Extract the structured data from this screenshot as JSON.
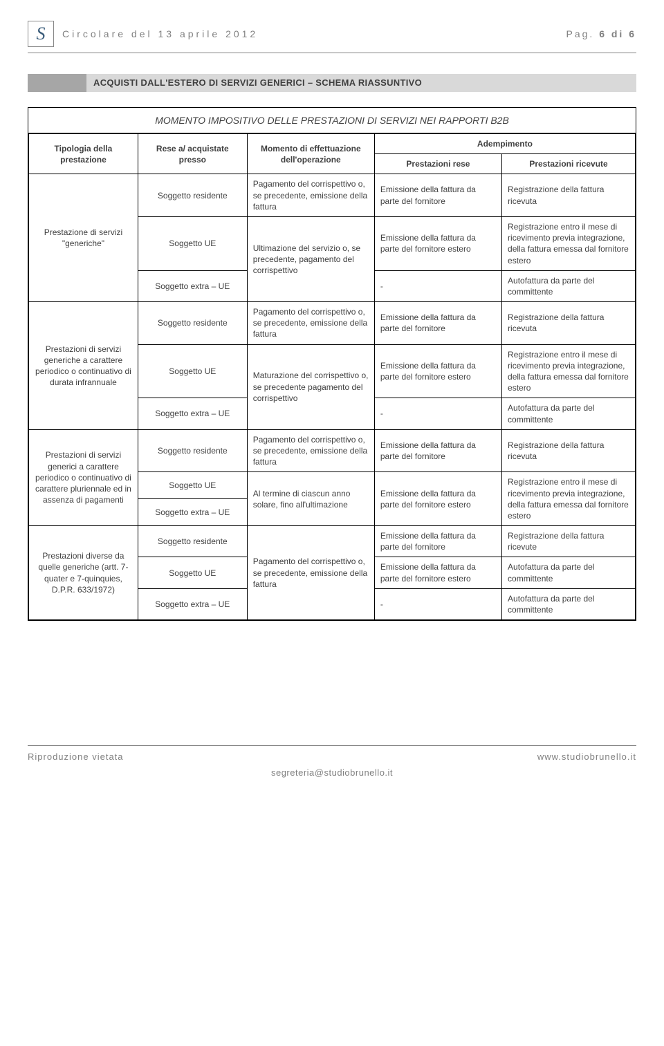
{
  "header": {
    "logo_text": "S",
    "title": "Circolare del 13 aprile 2012",
    "page_label": "Pag.",
    "page_num": "6 di 6"
  },
  "section_title": "ACQUISTI DALL'ESTERO DI SERVIZI GENERICI – SCHEMA RIASSUNTIVO",
  "table": {
    "super_header": "MOMENTO IMPOSITIVO DELLE PRESTAZIONI DI SERVIZI NEI RAPPORTI B2B",
    "headers": {
      "tipologia": "Tipologia della prestazione",
      "rese": "Rese a/ acquistate presso",
      "momento": "Momento di effettuazione dell'operazione",
      "adempimento": "Adempimento",
      "prest_rese": "Prestazioni rese",
      "prest_ricevute": "Prestazioni ricevute"
    },
    "groups": [
      {
        "tipologia": "Prestazione di servizi \"generiche\"",
        "rows": [
          {
            "soggetto": "Soggetto residente",
            "momento": "Pagamento del corrispettivo o, se precedente, emissione della fattura",
            "rese": "Emissione della fattura da parte del fornitore",
            "ricevute": "Registrazione della fattura ricevuta",
            "momento_span": 1
          },
          {
            "soggetto": "Soggetto UE",
            "momento": "Ultimazione del servizio o, se precedente, pagamento del corrispettivo",
            "rese": "Emissione della fattura da parte del fornitore estero",
            "ricevute": "Registrazione entro il mese di ricevimento previa integrazione, della fattura emessa dal fornitore estero",
            "momento_span": 2
          },
          {
            "soggetto": "Soggetto extra – UE",
            "rese": "-",
            "ricevute": "Autofattura da parte del committente"
          }
        ]
      },
      {
        "tipologia": "Prestazioni di servizi generiche a carattere periodico o continuativo di durata infrannuale",
        "rows": [
          {
            "soggetto": "Soggetto residente",
            "momento": "Pagamento del corrispettivo o, se precedente, emissione della fattura",
            "rese": "Emissione della fattura da parte del fornitore",
            "ricevute": "Registrazione della fattura ricevuta",
            "momento_span": 1
          },
          {
            "soggetto": "Soggetto UE",
            "momento": "Maturazione del corrispettivo o, se precedente pagamento del corrispettivo",
            "rese": "Emissione della fattura da parte del fornitore estero",
            "ricevute": "Registrazione entro il mese di ricevimento previa integrazione, della fattura emessa dal fornitore estero",
            "momento_span": 2
          },
          {
            "soggetto": "Soggetto extra – UE",
            "rese": "-",
            "ricevute": "Autofattura da parte del committente"
          }
        ]
      },
      {
        "tipologia": "Prestazioni di servizi generici a carattere periodico o continuativo di carattere pluriennale ed in assenza di pagamenti",
        "rows": [
          {
            "soggetto": "Soggetto residente",
            "momento": "Pagamento del corrispettivo o, se precedente, emissione della fattura",
            "rese": "Emissione della fattura da parte del fornitore",
            "ricevute": "Registrazione della fattura ricevuta",
            "momento_span": 1
          },
          {
            "soggetto": "Soggetto UE",
            "momento": "Al termine di ciascun anno solare, fino all'ultimazione",
            "rese": "Emissione della fattura da parte del fornitore estero",
            "ricevute": "Registrazione entro il mese di ricevimento previa integrazione, della fattura emessa dal fornitore estero",
            "momento_span": 2,
            "rese_span": 2,
            "ricevute_span": 2
          },
          {
            "soggetto": "Soggetto extra – UE"
          }
        ]
      },
      {
        "tipologia": "Prestazioni diverse da quelle generiche (artt. 7-quater e 7-quinquies, D.P.R. 633/1972)",
        "rows": [
          {
            "soggetto": "Soggetto residente",
            "momento": "Pagamento del corrispettivo o, se precedente, emissione della fattura",
            "rese": "Emissione della fattura da parte del fornitore",
            "ricevute": "Registrazione della fattura ricevute",
            "momento_span": 3
          },
          {
            "soggetto": "Soggetto UE",
            "rese": "Emissione della fattura da parte del fornitore estero",
            "ricevute": "Autofattura da parte del committente"
          },
          {
            "soggetto": "Soggetto extra – UE",
            "rese": "-",
            "ricevute": "Autofattura da parte del committente"
          }
        ]
      }
    ]
  },
  "footer": {
    "left": "Riproduzione vietata",
    "right": "www.studiobrunello.it",
    "email": "segreteria@studiobrunello.it"
  },
  "colors": {
    "bar_left": "#a6a6a6",
    "bar_right": "#d9d9d9",
    "text_muted": "#808080",
    "border": "#000000"
  }
}
